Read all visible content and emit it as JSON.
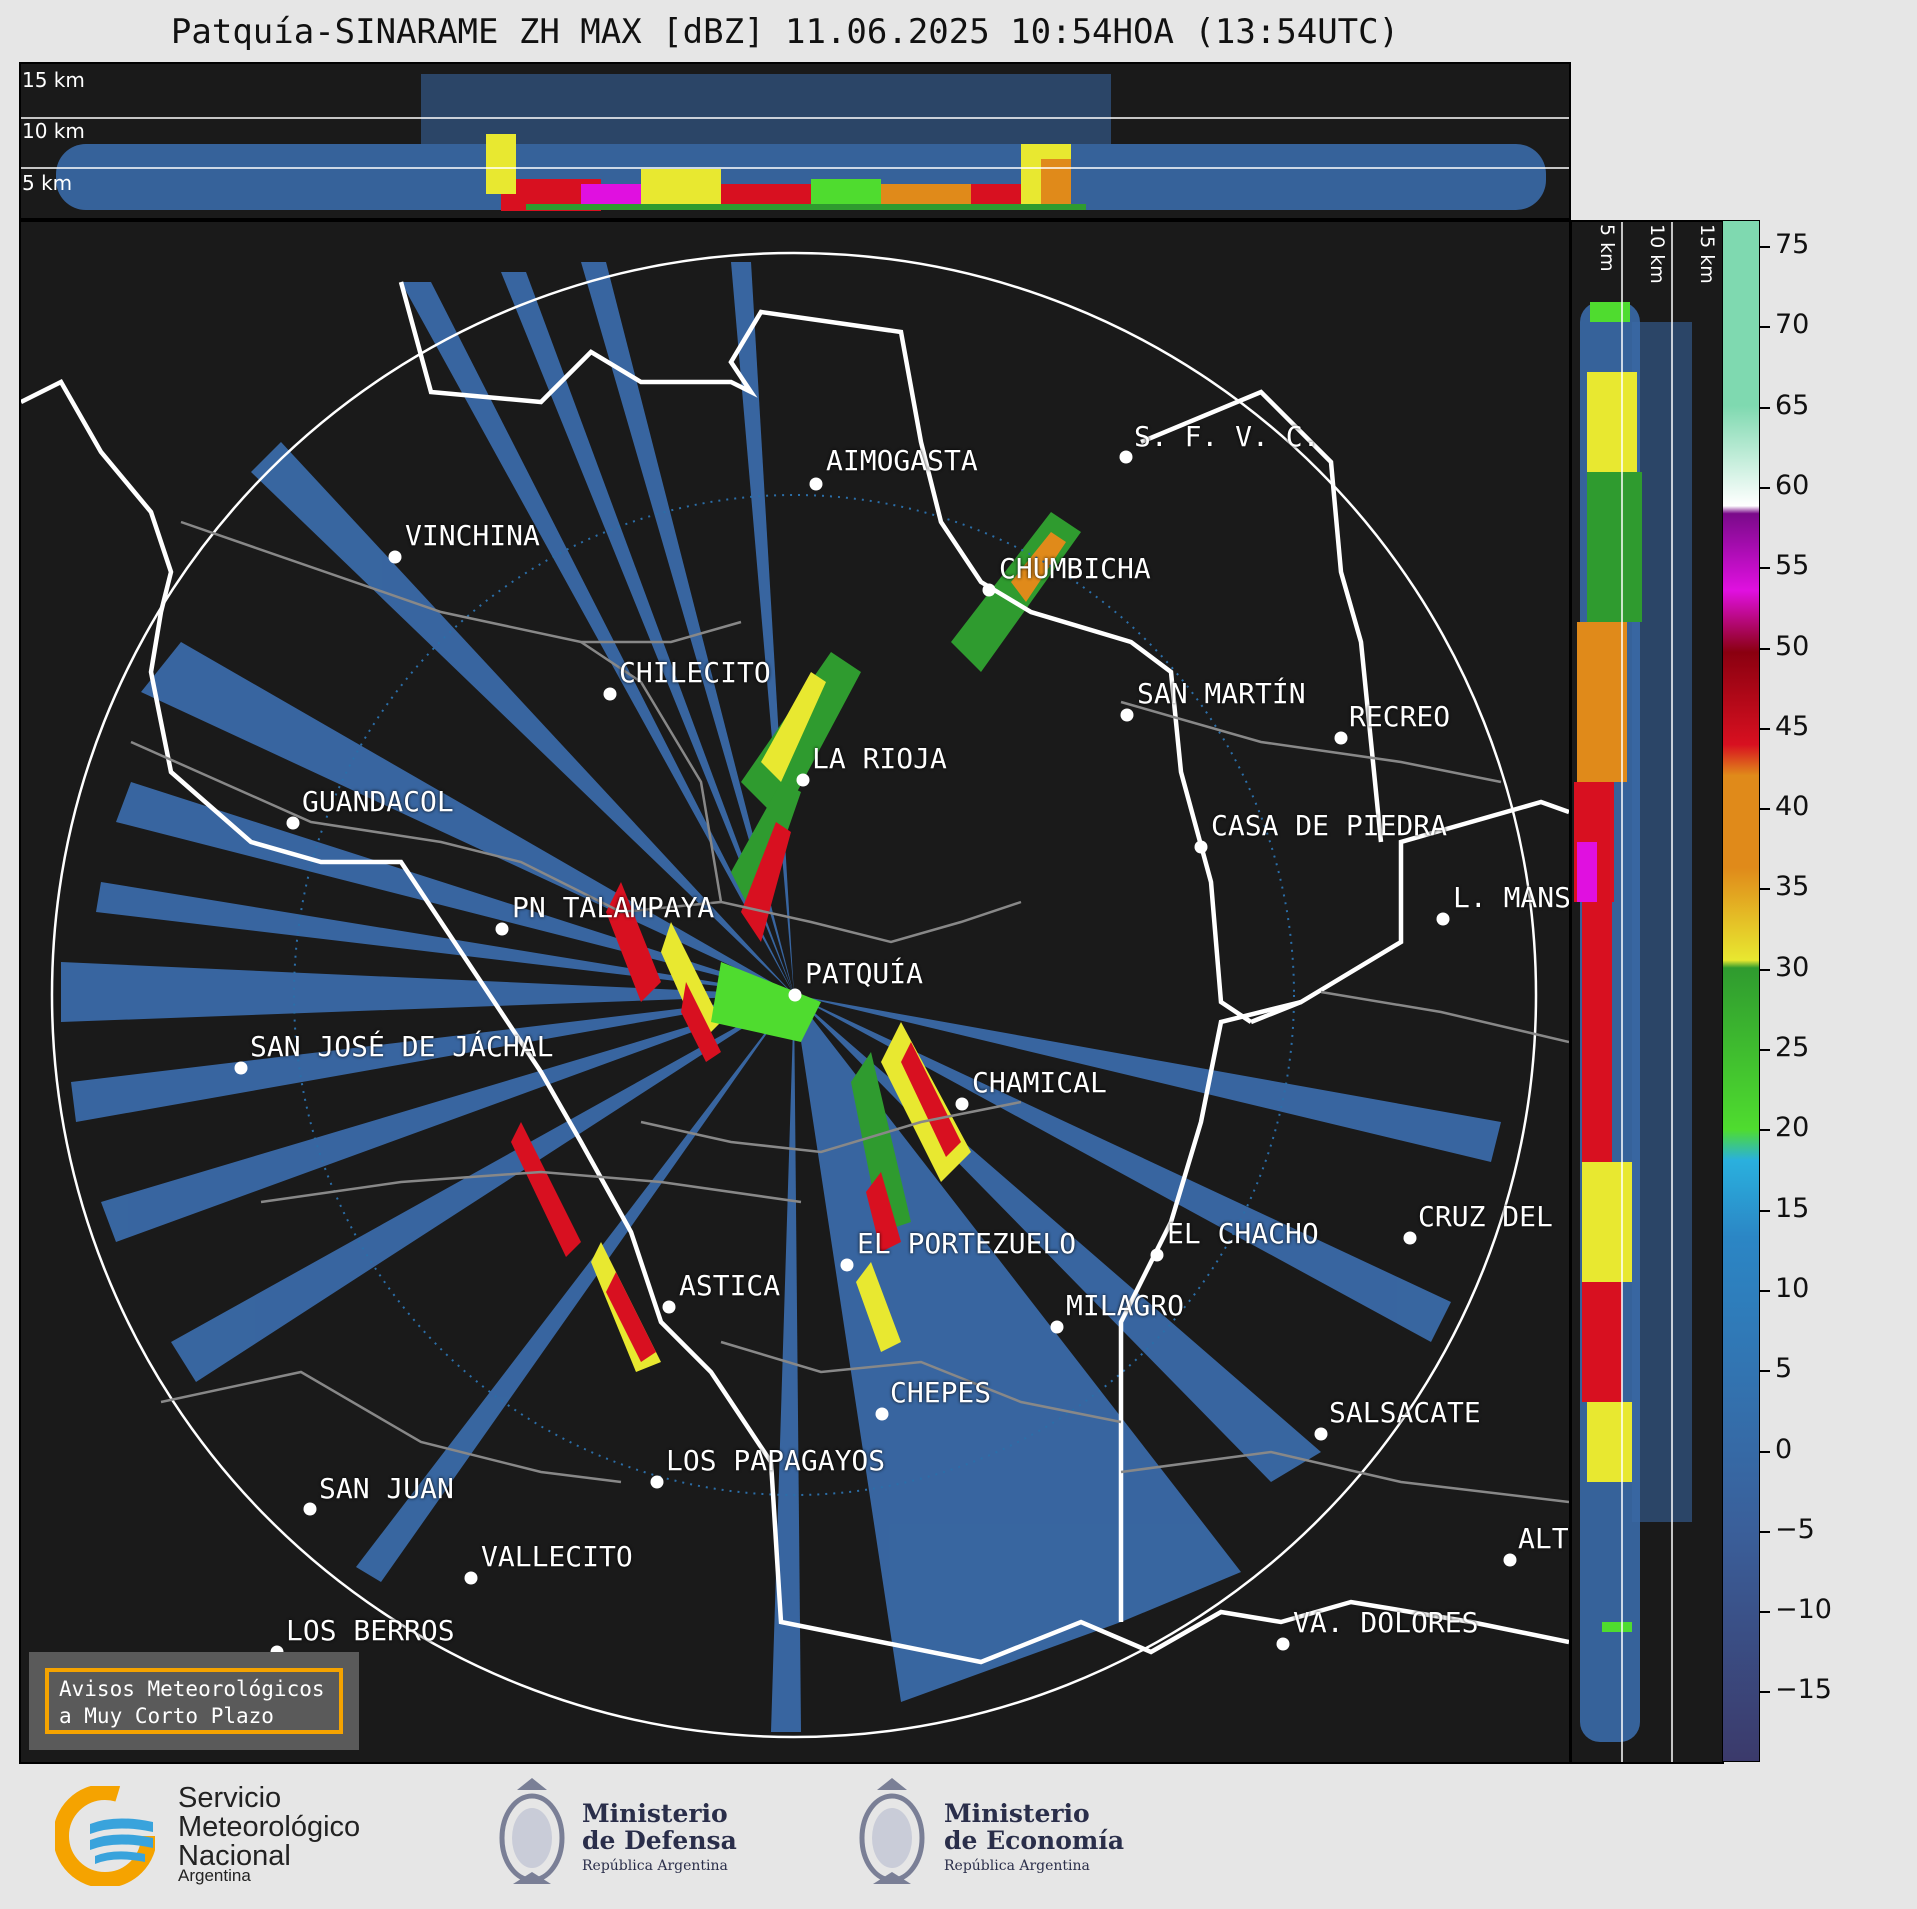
{
  "title": "Patquía-SINARAME ZH MAX [dBZ] 11.06.2025 10:54HOA (13:54UTC)",
  "top_panel": {
    "altitude_labels": [
      "15 km",
      "10 km",
      "5 km"
    ]
  },
  "side_panel": {
    "altitude_labels": [
      "5 km",
      "10 km",
      "15 km"
    ]
  },
  "colorbar": {
    "unit": "dBZ",
    "ticks": [
      "75",
      "70",
      "65",
      "60",
      "55",
      "50",
      "45",
      "40",
      "35",
      "30",
      "25",
      "20",
      "15",
      "10",
      "5",
      "0",
      "−5",
      "−10",
      "−15"
    ],
    "colors": {
      "gray_low": "#3b3a6b",
      "blue_low": "#3a5f9a",
      "blue": "#2b86c5",
      "cyan": "#2ab0de",
      "green": "#2f9b2f",
      "light_green": "#4fdc2f",
      "yellow": "#e8e830",
      "orange": "#e08a1a",
      "red": "#d81020",
      "dark_red": "#8a0010",
      "magenta": "#e010e0",
      "purple": "#7a0a8a",
      "white": "#ffffff",
      "mint": "#7fd9b0"
    }
  },
  "cities": [
    {
      "name": "AIMOGASTA"
    },
    {
      "name": "S. F. V. C."
    },
    {
      "name": "VINCHINA"
    },
    {
      "name": "CHUMBICHA"
    },
    {
      "name": "CHILECITO"
    },
    {
      "name": "SAN MARTÍN"
    },
    {
      "name": "RECREO"
    },
    {
      "name": "LA RIOJA"
    },
    {
      "name": "GUANDACOL"
    },
    {
      "name": "CASA DE PIEDRA"
    },
    {
      "name": "PN TALAMPAYA"
    },
    {
      "name": "L. MANS"
    },
    {
      "name": "PATQUÍA"
    },
    {
      "name": "SAN JOSÉ DE JÁCHAL"
    },
    {
      "name": "CHAMICAL"
    },
    {
      "name": "CRUZ DEL"
    },
    {
      "name": "EL CHACHO"
    },
    {
      "name": "EL PORTEZUELO"
    },
    {
      "name": "ASTICA"
    },
    {
      "name": "MILAGRO"
    },
    {
      "name": "CHEPES"
    },
    {
      "name": "SALSACATE"
    },
    {
      "name": "LOS PAPAGAYOS"
    },
    {
      "name": "SAN JUAN"
    },
    {
      "name": "VALLECITO"
    },
    {
      "name": "ALT"
    },
    {
      "name": "LOS BERROS"
    },
    {
      "name": "VA. DOLORES"
    }
  ],
  "warning": {
    "line1": "Avisos Meteorológicos",
    "line2": "a Muy Corto Plazo"
  },
  "footer": {
    "smn": {
      "line1": "Servicio",
      "line2": "Meteorológico",
      "line3": "Nacional",
      "line4": "Argentina"
    },
    "defensa": {
      "line1": "Ministerio",
      "line2": "de Defensa",
      "line3": "República Argentina"
    },
    "economia": {
      "line1": "Ministerio",
      "line2": "de Economía",
      "line3": "República Argentina"
    }
  }
}
